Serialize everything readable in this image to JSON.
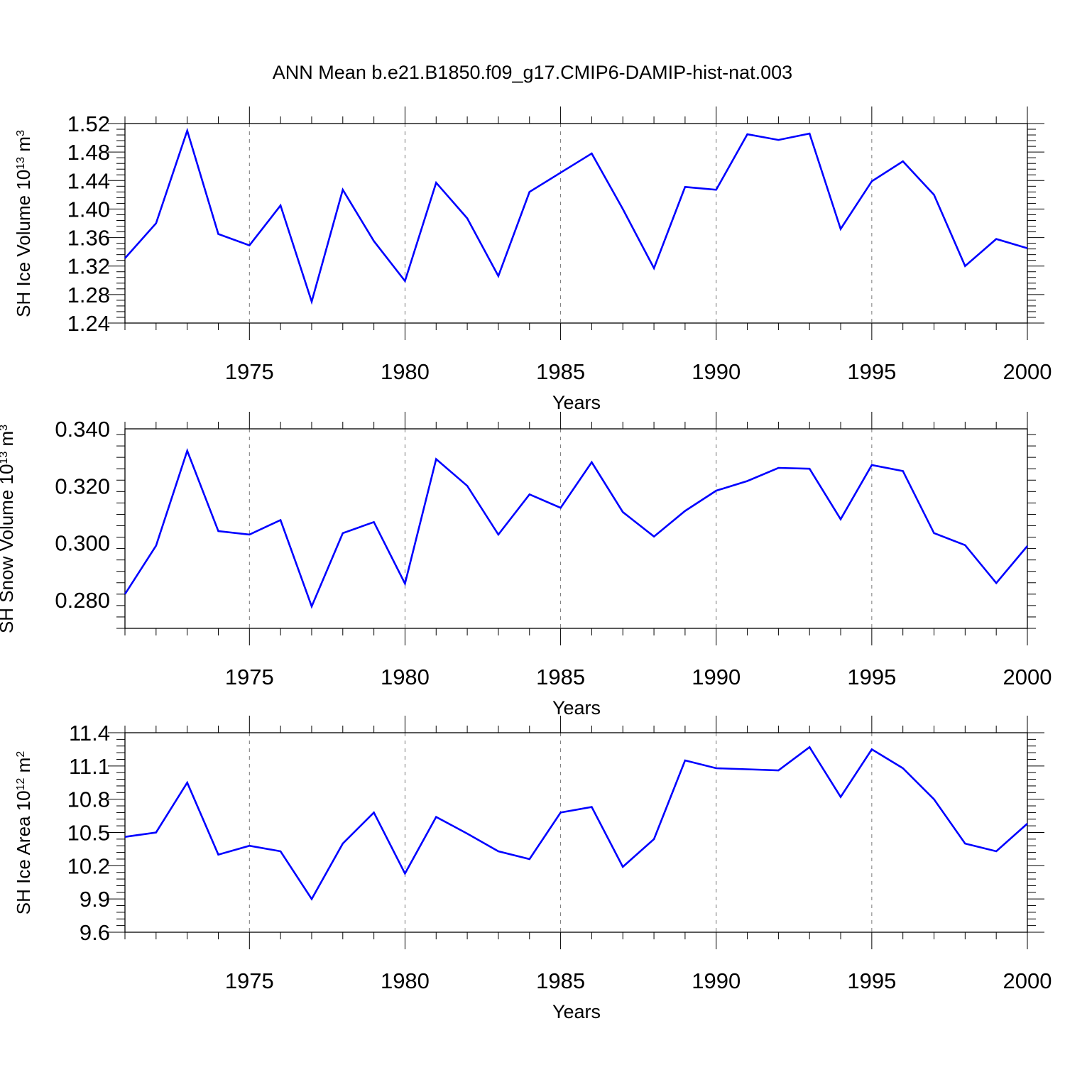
{
  "title": "ANN Mean b.e21.B1850.f09_g17.CMIP6-DAMIP-hist-nat.003",
  "line_color": "#0000ff",
  "chart_data": [
    {
      "type": "line",
      "ylabel": "SH Ice Volume 10",
      "ylabel_sup": "13",
      "ylabel_unit": "m",
      "ylabel_unit_sup": "3",
      "xlabel": "Years",
      "xlim": [
        1971,
        2000
      ],
      "ylim": [
        1.24,
        1.52
      ],
      "yticks": [
        "1.24",
        "1.28",
        "1.32",
        "1.36",
        "1.40",
        "1.44",
        "1.48",
        "1.52"
      ],
      "xticks": [
        "1975",
        "1980",
        "1985",
        "1990",
        "1995",
        "2000"
      ],
      "x": [
        1971,
        1972,
        1973,
        1974,
        1975,
        1976,
        1977,
        1978,
        1979,
        1980,
        1981,
        1982,
        1983,
        1984,
        1985,
        1986,
        1987,
        1988,
        1989,
        1990,
        1991,
        1992,
        1993,
        1994,
        1995,
        1996,
        1997,
        1998,
        1999,
        2000
      ],
      "values": [
        1.331,
        1.38,
        1.51,
        1.365,
        1.349,
        1.405,
        1.27,
        1.427,
        1.355,
        1.299,
        1.437,
        1.387,
        1.306,
        1.424,
        1.451,
        1.478,
        1.4,
        1.317,
        1.431,
        1.427,
        1.505,
        1.497,
        1.506,
        1.372,
        1.439,
        1.467,
        1.42,
        1.32,
        1.358,
        1.345
      ]
    },
    {
      "type": "line",
      "ylabel": "SH Snow Volume 10",
      "ylabel_sup": "13",
      "ylabel_unit": "m",
      "ylabel_unit_sup": "3",
      "xlabel": "Years",
      "xlim": [
        1971,
        2000
      ],
      "ylim": [
        0.27,
        0.34
      ],
      "yticks": [
        "0.280",
        "0.300",
        "0.320",
        "0.340"
      ],
      "xticks": [
        "1975",
        "1980",
        "1985",
        "1990",
        "1995",
        "2000"
      ],
      "x": [
        1971,
        1972,
        1973,
        1974,
        1975,
        1976,
        1977,
        1978,
        1979,
        1980,
        1981,
        1982,
        1983,
        1984,
        1985,
        1986,
        1987,
        1988,
        1989,
        1990,
        1991,
        1992,
        1993,
        1994,
        1995,
        1996,
        1997,
        1998,
        1999,
        2000
      ],
      "values": [
        0.282,
        0.299,
        0.3323,
        0.3041,
        0.3029,
        0.308,
        0.2777,
        0.3034,
        0.3073,
        0.2857,
        0.3294,
        0.32,
        0.3029,
        0.317,
        0.3123,
        0.3283,
        0.3108,
        0.3022,
        0.3112,
        0.3183,
        0.3217,
        0.3263,
        0.326,
        0.3083,
        0.3273,
        0.3252,
        0.3034,
        0.2992,
        0.2859,
        0.2989
      ]
    },
    {
      "type": "line",
      "ylabel": "SH Ice Area 10",
      "ylabel_sup": "12",
      "ylabel_unit": "m",
      "ylabel_unit_sup": "2",
      "xlabel": "Years",
      "xlim": [
        1971,
        2000
      ],
      "ylim": [
        9.6,
        11.4
      ],
      "yticks": [
        "9.6",
        "9.9",
        "10.2",
        "10.5",
        "10.8",
        "11.1",
        "11.4"
      ],
      "xticks": [
        "1975",
        "1980",
        "1985",
        "1990",
        "1995",
        "2000"
      ],
      "x": [
        1971,
        1972,
        1973,
        1974,
        1975,
        1976,
        1977,
        1978,
        1979,
        1980,
        1981,
        1982,
        1983,
        1984,
        1985,
        1986,
        1987,
        1988,
        1989,
        1990,
        1991,
        1992,
        1993,
        1994,
        1995,
        1996,
        1997,
        1998,
        1999,
        2000
      ],
      "values": [
        10.46,
        10.5,
        10.95,
        10.3,
        10.38,
        10.33,
        9.9,
        10.4,
        10.68,
        10.13,
        10.64,
        10.49,
        10.33,
        10.26,
        10.68,
        10.73,
        10.19,
        10.44,
        11.15,
        11.08,
        11.07,
        11.06,
        11.27,
        10.82,
        11.25,
        11.08,
        10.8,
        10.4,
        10.33,
        10.58
      ]
    }
  ]
}
